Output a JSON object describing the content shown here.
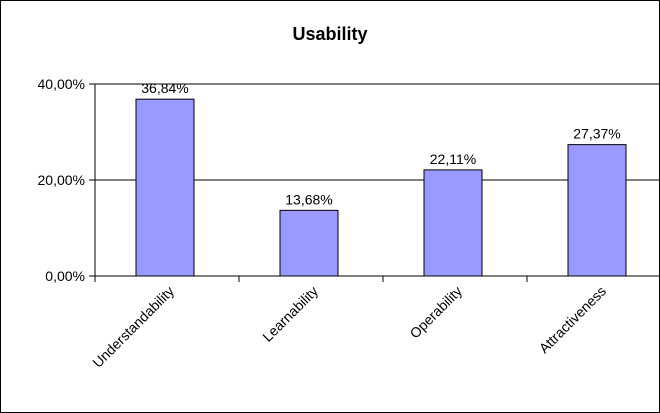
{
  "chart_data": {
    "type": "bar",
    "title": "Usability",
    "xlabel": "",
    "ylabel": "",
    "categories": [
      "Understandability",
      "Learnability",
      "Operability",
      "Attractiveness"
    ],
    "values": [
      36.84,
      13.68,
      22.11,
      27.37
    ],
    "data_labels": [
      "36,84%",
      "13,68%",
      "22,11%",
      "27,37%"
    ],
    "ylim": [
      0,
      40
    ],
    "yticks": [
      0,
      20,
      40
    ],
    "ytick_labels": [
      "0,00%",
      "20,00%",
      "40,00%"
    ],
    "grid": true,
    "legend": "none",
    "colors": {
      "bar": "#9999ff",
      "bar_edge": "#000000",
      "axis": "#000000",
      "grid": "#000000"
    }
  }
}
